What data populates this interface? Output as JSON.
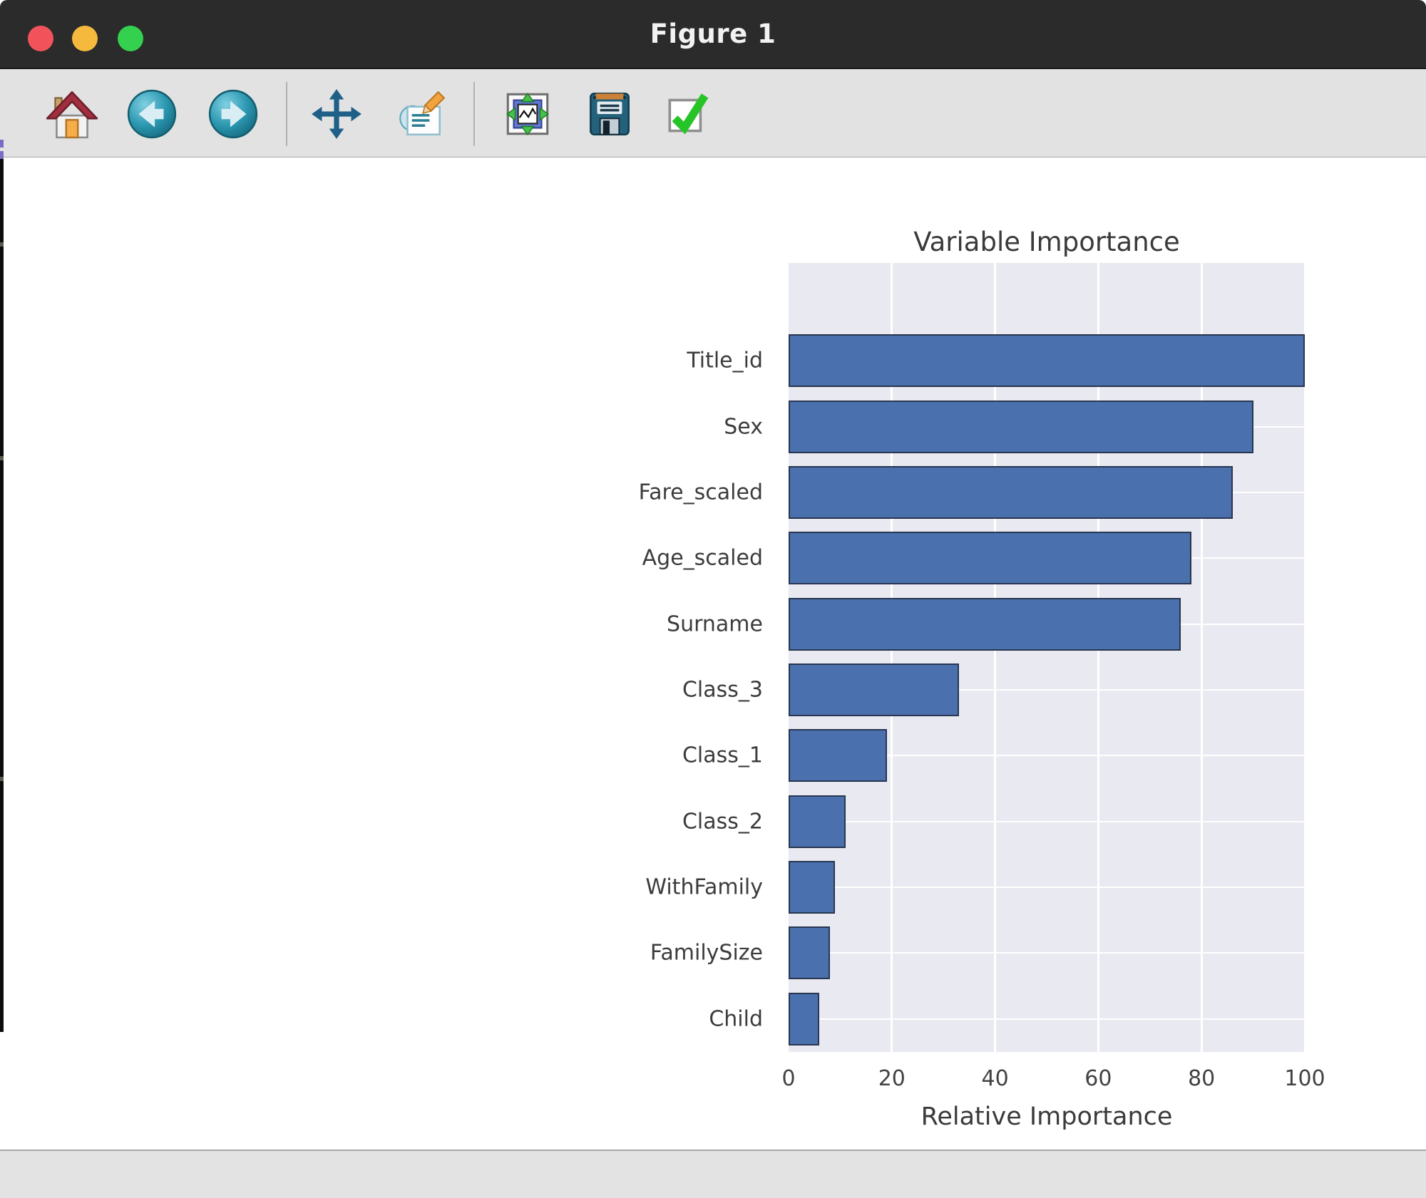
{
  "window": {
    "title": "Figure 1",
    "titlebar_color": "#2b2b2b",
    "traffic_lights": {
      "close_color": "#f2535b",
      "minimize_color": "#f5b93d",
      "maximize_color": "#33d14d"
    }
  },
  "toolbar": {
    "background": "#e2e2e2",
    "icons": [
      "home-icon",
      "back-icon",
      "forward-icon",
      "pan-icon",
      "customize-icon",
      "configure-subplots-icon",
      "save-icon",
      "check-icon"
    ]
  },
  "chart_data": {
    "type": "bar",
    "orientation": "horizontal",
    "title": "Variable Importance",
    "xlabel": "Relative Importance",
    "ylabel": "",
    "categories": [
      "Title_id",
      "Sex",
      "Fare_scaled",
      "Age_scaled",
      "Surname",
      "Class_3",
      "Class_1",
      "Class_2",
      "WithFamily",
      "FamilySize",
      "Child"
    ],
    "values": [
      100,
      90,
      86,
      78,
      76,
      33,
      19,
      11,
      9,
      8,
      6
    ],
    "xlim": [
      0,
      100
    ],
    "xticks": [
      0,
      20,
      40,
      60,
      80,
      100
    ],
    "grid": true,
    "legend": false,
    "plot_background": "#e9e9f1",
    "grid_color": "#ffffff",
    "bar_color": "#4a70ad",
    "bar_edge_color": "#283650",
    "text_color": "#3a3a3a"
  },
  "statusbar": {
    "text": ""
  }
}
